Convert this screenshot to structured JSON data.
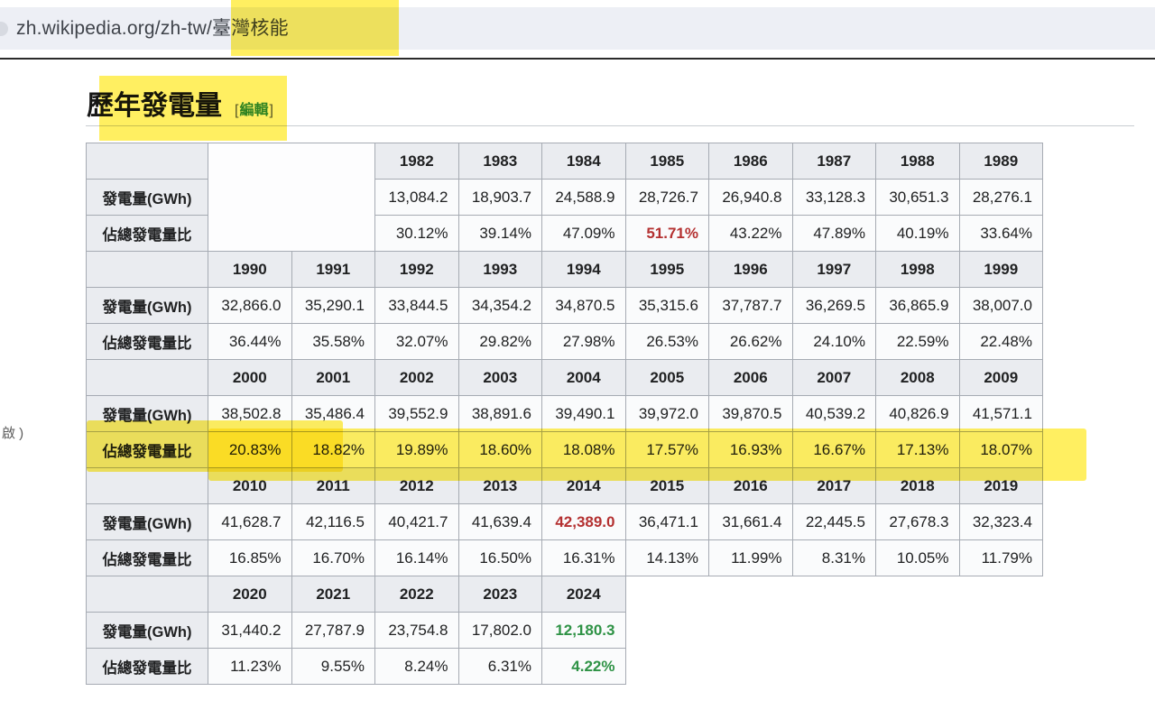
{
  "browser": {
    "url": "zh.wikipedia.org/zh-tw/臺灣核能"
  },
  "sidebar_fragment": "啟 )",
  "section": {
    "title": "歷年發電量",
    "edit_bracket_open": "[",
    "edit_label": "編輯",
    "edit_bracket_close": "]"
  },
  "colors": {
    "highlight": "#ffe600",
    "red": "#b43131",
    "green": "#2e9245",
    "edit_link": "#2e8b57"
  },
  "chart_data": {
    "type": "table",
    "title": "歷年發電量",
    "row_labels": {
      "generation": "發電量(GWh)",
      "share": "佔總發電量比"
    },
    "blocks": [
      {
        "years": [
          "1982",
          "1983",
          "1984",
          "1985",
          "1986",
          "1987",
          "1988",
          "1989"
        ],
        "lead_empty_cols": 2,
        "generation": [
          "13,084.2",
          "18,903.7",
          "24,588.9",
          "28,726.7",
          "26,940.8",
          "33,128.3",
          "30,651.3",
          "28,276.1"
        ],
        "share": [
          "30.12%",
          "39.14%",
          "47.09%",
          "51.71%",
          "43.22%",
          "47.89%",
          "40.19%",
          "33.64%"
        ],
        "generation_styles": [
          null,
          null,
          null,
          null,
          null,
          null,
          null,
          null
        ],
        "share_styles": [
          null,
          null,
          null,
          "red",
          null,
          null,
          null,
          null
        ]
      },
      {
        "years": [
          "1990",
          "1991",
          "1992",
          "1993",
          "1994",
          "1995",
          "1996",
          "1997",
          "1998",
          "1999"
        ],
        "lead_empty_cols": 0,
        "generation": [
          "32,866.0",
          "35,290.1",
          "33,844.5",
          "34,354.2",
          "34,870.5",
          "35,315.6",
          "37,787.7",
          "36,269.5",
          "36,865.9",
          "38,007.0"
        ],
        "share": [
          "36.44%",
          "35.58%",
          "32.07%",
          "29.82%",
          "27.98%",
          "26.53%",
          "26.62%",
          "24.10%",
          "22.59%",
          "22.48%"
        ],
        "generation_styles": [
          null,
          null,
          null,
          null,
          null,
          null,
          null,
          null,
          null,
          null
        ],
        "share_styles": [
          null,
          null,
          null,
          null,
          null,
          null,
          null,
          null,
          null,
          null
        ]
      },
      {
        "years": [
          "2000",
          "2001",
          "2002",
          "2003",
          "2004",
          "2005",
          "2006",
          "2007",
          "2008",
          "2009"
        ],
        "lead_empty_cols": 0,
        "generation": [
          "38,502.8",
          "35,486.4",
          "39,552.9",
          "38,891.6",
          "39,490.1",
          "39,972.0",
          "39,870.5",
          "40,539.2",
          "40,826.9",
          "41,571.1"
        ],
        "share": [
          "20.83%",
          "18.82%",
          "19.89%",
          "18.60%",
          "18.08%",
          "17.57%",
          "16.93%",
          "16.67%",
          "17.13%",
          "18.07%"
        ],
        "generation_styles": [
          null,
          null,
          null,
          null,
          null,
          null,
          null,
          null,
          null,
          null
        ],
        "share_styles": [
          null,
          null,
          null,
          null,
          null,
          null,
          null,
          null,
          null,
          null
        ]
      },
      {
        "years": [
          "2010",
          "2011",
          "2012",
          "2013",
          "2014",
          "2015",
          "2016",
          "2017",
          "2018",
          "2019"
        ],
        "lead_empty_cols": 0,
        "generation": [
          "41,628.7",
          "42,116.5",
          "40,421.7",
          "41,639.4",
          "42,389.0",
          "36,471.1",
          "31,661.4",
          "22,445.5",
          "27,678.3",
          "32,323.4"
        ],
        "share": [
          "16.85%",
          "16.70%",
          "16.14%",
          "16.50%",
          "16.31%",
          "14.13%",
          "11.99%",
          "8.31%",
          "10.05%",
          "11.79%"
        ],
        "generation_styles": [
          null,
          null,
          null,
          null,
          "red",
          null,
          null,
          null,
          null,
          null
        ],
        "share_styles": [
          null,
          null,
          null,
          null,
          null,
          null,
          null,
          null,
          null,
          null
        ]
      },
      {
        "years": [
          "2020",
          "2021",
          "2022",
          "2023",
          "2024"
        ],
        "lead_empty_cols": 0,
        "generation": [
          "31,440.2",
          "27,787.9",
          "23,754.8",
          "17,802.0",
          "12,180.3"
        ],
        "share": [
          "11.23%",
          "9.55%",
          "8.24%",
          "6.31%",
          "4.22%"
        ],
        "generation_styles": [
          null,
          null,
          null,
          null,
          "green"
        ],
        "share_styles": [
          null,
          null,
          null,
          null,
          "green"
        ]
      }
    ]
  }
}
